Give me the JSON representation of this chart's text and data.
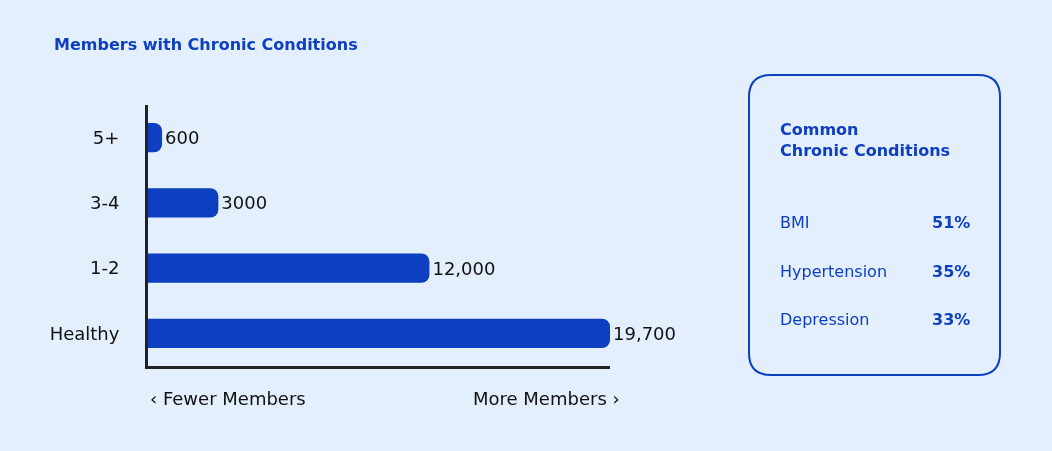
{
  "chart_data": [
    {
      "type": "bar",
      "orientation": "horizontal",
      "title": "Members with Chronic Conditions",
      "categories": [
        "5+",
        "3-4",
        "1-2",
        "Healthy"
      ],
      "values": [
        600,
        3000,
        12000,
        19700
      ],
      "value_labels": [
        "600",
        "3000",
        "12,000",
        "19,700"
      ],
      "color": "#0d3fc0",
      "xlim": [
        0,
        19700
      ],
      "grid": false,
      "tick_labels": "y",
      "annotations": [
        "‹ Fewer Members",
        "More Members ›"
      ]
    },
    {
      "type": "other",
      "title": "Common Chronic Conditions",
      "annotations": [
        "BMI",
        "51%",
        "Hypertension",
        "35%",
        "Depression",
        "33%"
      ]
    }
  ]
}
